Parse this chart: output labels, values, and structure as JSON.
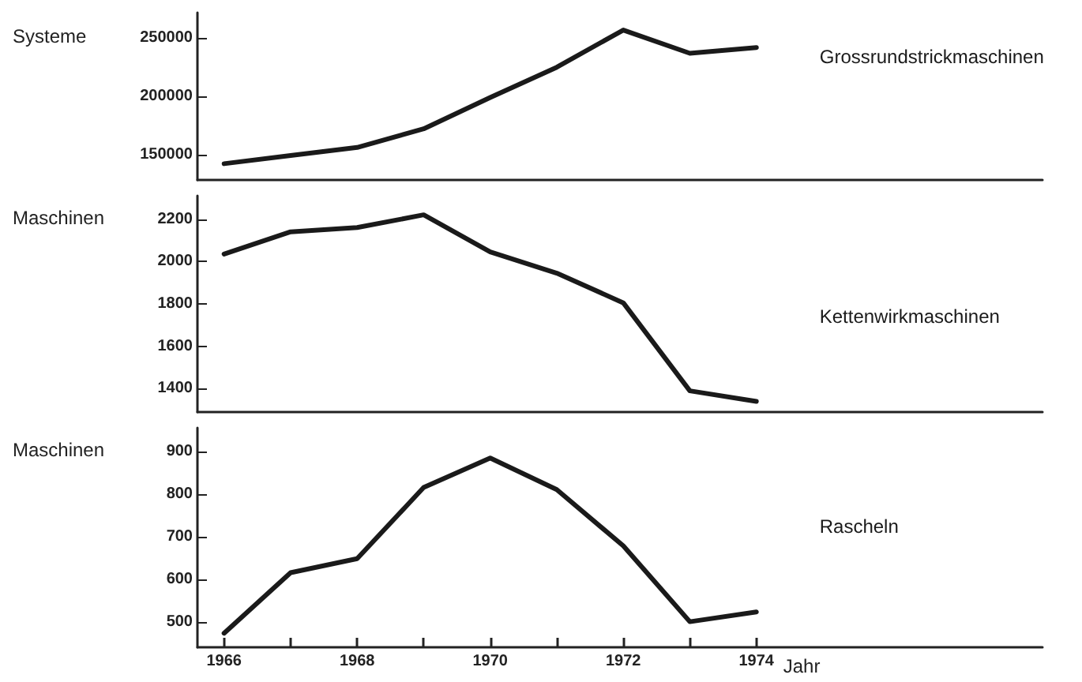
{
  "chart_data": [
    {
      "type": "line",
      "ylabel": "Systeme",
      "x": [
        1966,
        1967,
        1968,
        1969,
        1970,
        1971,
        1972,
        1973,
        1974
      ],
      "series": [
        {
          "name": "Grossrundstrickmaschinen",
          "color": "#1a1a1a",
          "values": [
            142000,
            149000,
            156000,
            172000,
            199000,
            225000,
            257000,
            237000,
            242000
          ]
        }
      ],
      "xlim": [
        1965.6,
        1978.3
      ],
      "ylim": [
        128000,
        272000
      ],
      "yticks": [
        150000,
        200000,
        250000
      ],
      "tick_labels": "y",
      "grid": false,
      "legend": false,
      "marker": "none",
      "line_style": "solid"
    },
    {
      "type": "line",
      "ylabel": "Maschinen",
      "x": [
        1966,
        1967,
        1968,
        1969,
        1970,
        1971,
        1972,
        1973,
        1974
      ],
      "series": [
        {
          "name": "Kettenwirkmaschinen",
          "color": "#1a1a1a",
          "values": [
            2035,
            2140,
            2160,
            2220,
            2045,
            1945,
            1805,
            1390,
            1340
          ]
        }
      ],
      "xlim": [
        1965.6,
        1978.3
      ],
      "ylim": [
        1290,
        2310
      ],
      "yticks": [
        1400,
        1600,
        1800,
        2000,
        2200
      ],
      "tick_labels": "y",
      "grid": false,
      "legend": false,
      "marker": "none",
      "line_style": "solid"
    },
    {
      "type": "line",
      "ylabel": "Maschinen",
      "xlabel": "Jahr",
      "x": [
        1966,
        1967,
        1968,
        1969,
        1970,
        1971,
        1972,
        1973,
        1974
      ],
      "series": [
        {
          "name": "Rascheln",
          "color": "#1a1a1a",
          "values": [
            473,
            615,
            648,
            815,
            884,
            810,
            678,
            500,
            523
          ]
        }
      ],
      "xlim": [
        1965.6,
        1978.3
      ],
      "ylim": [
        440,
        955
      ],
      "yticks": [
        500,
        600,
        700,
        800,
        900
      ],
      "xticks": [
        1966,
        {
          "value": 1967,
          "label": null
        },
        1968,
        {
          "value": 1969,
          "label": null
        },
        1970,
        {
          "value": 1971,
          "label": null
        },
        1972,
        {
          "value": 1973,
          "label": null
        },
        1974
      ],
      "grid": false,
      "legend": false,
      "marker": "none",
      "line_style": "solid"
    }
  ]
}
